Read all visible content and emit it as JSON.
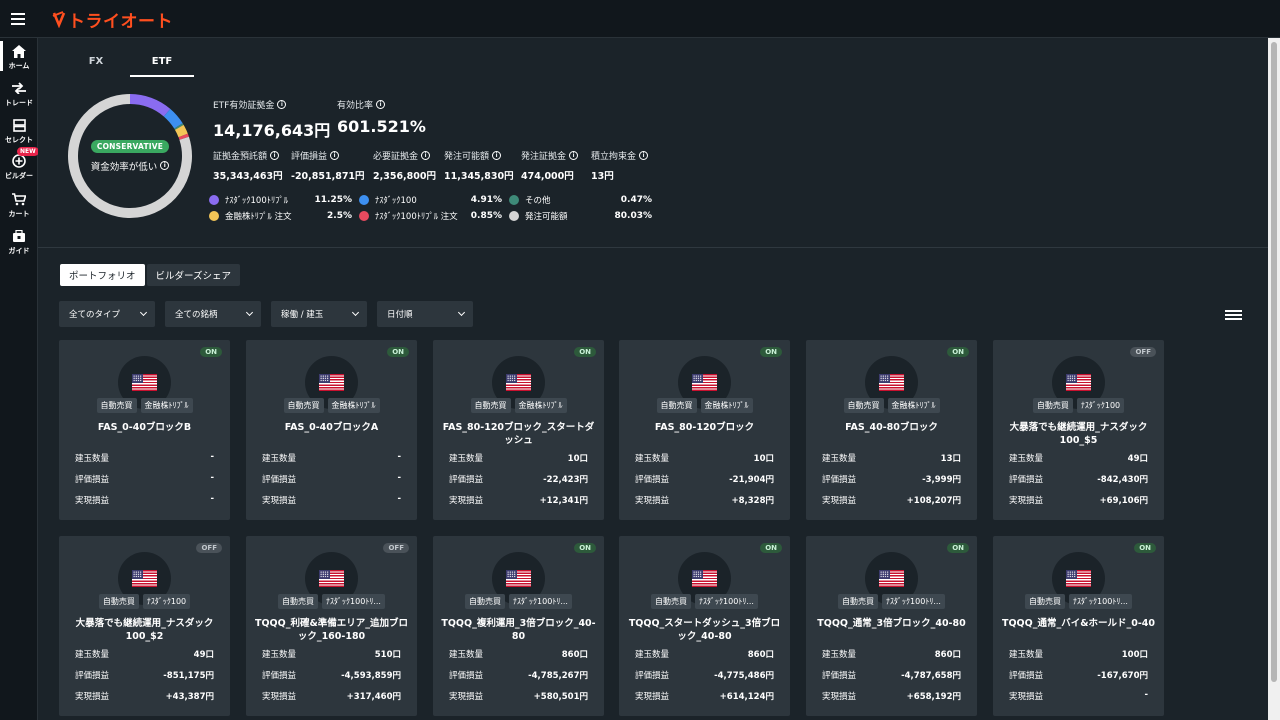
{
  "brand": {
    "logo_text": "トライオート",
    "accent": "#ff4f1f"
  },
  "rail": [
    {
      "label": "ホーム",
      "icon": "home-icon"
    },
    {
      "label": "トレード",
      "icon": "trade-icon"
    },
    {
      "label": "セレクト",
      "icon": "select-icon"
    },
    {
      "label": "ビルダー",
      "icon": "builder-icon",
      "badge": "NEW"
    },
    {
      "label": "カート",
      "icon": "cart-icon"
    },
    {
      "label": "ガイド",
      "icon": "guide-icon"
    }
  ],
  "tabs": [
    "FX",
    "ETF"
  ],
  "summary": {
    "badge": "CONSERVATIVE",
    "efficiency": "資金効率が低い",
    "etf_margin_label": "ETF有効証拠金",
    "etf_margin_value": "14,176,643円",
    "ratio_label": "有効比率",
    "ratio_value": "601.521%",
    "stats": [
      {
        "label": "証拠金預託額",
        "value": "35,343,463円"
      },
      {
        "label": "評価損益",
        "value": "-20,851,871円"
      },
      {
        "label": "必要証拠金",
        "value": "2,356,800円"
      },
      {
        "label": "発注可能額",
        "value": "11,345,830円"
      },
      {
        "label": "発注証拠金",
        "value": "474,000円"
      },
      {
        "label": "積立拘束金",
        "value": "13円"
      }
    ]
  },
  "chart_data": {
    "type": "pie",
    "title": "",
    "categories": [
      "ﾅｽﾀﾞｯｸ100ﾄﾘﾌﾟﾙ",
      "ﾅｽﾀﾞｯｸ100",
      "その他",
      "金融株ﾄﾘﾌﾟﾙ 注文",
      "ﾅｽﾀﾞｯｸ100ﾄﾘﾌﾟﾙ 注文",
      "発注可能額"
    ],
    "values": [
      11.25,
      4.91,
      0.47,
      2.5,
      0.85,
      80.03
    ],
    "labels": [
      "11.25%",
      "4.91%",
      "0.47%",
      "2.5%",
      "0.85%",
      "80.03%"
    ],
    "colors": [
      "#8a6cf0",
      "#3d8ff0",
      "#3e8a78",
      "#f3c557",
      "#e84a5f",
      "#d5d5d5"
    ]
  },
  "portfolio": {
    "segments": [
      "ポートフォリオ",
      "ビルダーズシェア"
    ],
    "filters": [
      "全てのタイプ",
      "全ての銘柄",
      "稼働 / 建玉",
      "日付順"
    ],
    "row_labels": {
      "position": "建玉数量",
      "unrealized": "評価損益",
      "realized": "実現損益"
    },
    "cards": [
      {
        "status": "ON",
        "tags": [
          "自動売買",
          "金融株ﾄﾘﾌﾟﾙ"
        ],
        "title": "FAS_0-40ブロックB",
        "position": "-",
        "unrealized": "-",
        "realized": "-"
      },
      {
        "status": "ON",
        "tags": [
          "自動売買",
          "金融株ﾄﾘﾌﾟﾙ"
        ],
        "title": "FAS_0-40ブロックA",
        "position": "-",
        "unrealized": "-",
        "realized": "-"
      },
      {
        "status": "ON",
        "tags": [
          "自動売買",
          "金融株ﾄﾘﾌﾟﾙ"
        ],
        "title": "FAS_80-120ブロック_スタートダッシュ",
        "position": "10口",
        "unrealized": "-22,423円",
        "realized": "+12,341円"
      },
      {
        "status": "ON",
        "tags": [
          "自動売買",
          "金融株ﾄﾘﾌﾟﾙ"
        ],
        "title": "FAS_80-120ブロック",
        "position": "10口",
        "unrealized": "-21,904円",
        "realized": "+8,328円"
      },
      {
        "status": "ON",
        "tags": [
          "自動売買",
          "金融株ﾄﾘﾌﾟﾙ"
        ],
        "title": "FAS_40-80ブロック",
        "position": "13口",
        "unrealized": "-3,999円",
        "realized": "+108,207円"
      },
      {
        "status": "OFF",
        "tags": [
          "自動売買",
          "ﾅｽﾀﾞｯｸ100"
        ],
        "title": "大暴落でも継続運用_ナスダック100_$5",
        "position": "49口",
        "unrealized": "-842,430円",
        "realized": "+69,106円"
      },
      {
        "status": "OFF",
        "tags": [
          "自動売買",
          "ﾅｽﾀﾞｯｸ100"
        ],
        "title": "大暴落でも継続運用_ナスダック100_$2",
        "position": "49口",
        "unrealized": "-851,175円",
        "realized": "+43,387円"
      },
      {
        "status": "OFF",
        "tags": [
          "自動売買",
          "ﾅｽﾀﾞｯｸ100ﾄﾘ..."
        ],
        "title": "TQQQ_利確&準備エリア_追加ブロック_160-180",
        "position": "510口",
        "unrealized": "-4,593,859円",
        "realized": "+317,460円"
      },
      {
        "status": "ON",
        "tags": [
          "自動売買",
          "ﾅｽﾀﾞｯｸ100ﾄﾘ..."
        ],
        "title": "TQQQ_複利運用_3倍ブロック_40-80",
        "position": "860口",
        "unrealized": "-4,785,267円",
        "realized": "+580,501円"
      },
      {
        "status": "ON",
        "tags": [
          "自動売買",
          "ﾅｽﾀﾞｯｸ100ﾄﾘ..."
        ],
        "title": "TQQQ_スタートダッシュ_3倍ブロック_40-80",
        "position": "860口",
        "unrealized": "-4,775,486円",
        "realized": "+614,124円"
      },
      {
        "status": "ON",
        "tags": [
          "自動売買",
          "ﾅｽﾀﾞｯｸ100ﾄﾘ..."
        ],
        "title": "TQQQ_通常_3倍ブロック_40-80",
        "position": "860口",
        "unrealized": "-4,787,658円",
        "realized": "+658,192円"
      },
      {
        "status": "ON",
        "tags": [
          "自動売買",
          "ﾅｽﾀﾞｯｸ100ﾄﾘ..."
        ],
        "title": "TQQQ_通常_バイ&ホールド_0-40",
        "position": "100口",
        "unrealized": "-167,670円",
        "realized": "-"
      }
    ]
  }
}
